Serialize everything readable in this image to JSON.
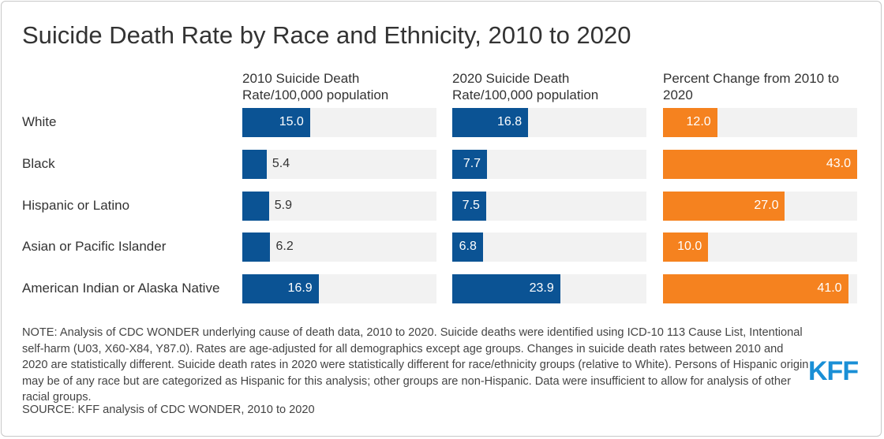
{
  "chart_data": {
    "type": "bar",
    "title": "Suicide Death Rate by Race and Ethnicity, 2010 to 2020",
    "categories": [
      "White",
      "Black",
      "Hispanic or Latino",
      "Asian or Pacific Islander",
      "American Indian or Alaska Native"
    ],
    "xlim": [
      0,
      43
    ],
    "series": [
      {
        "name": "2010 Suicide Death Rate/100,000 population",
        "color": "#0b5394",
        "values": [
          15.0,
          5.4,
          5.9,
          6.2,
          16.9
        ],
        "value_labels": [
          "15.0",
          "5.4",
          "5.9",
          "6.2",
          "16.9"
        ]
      },
      {
        "name": "2020 Suicide Death Rate/100,000 population",
        "color": "#0b5394",
        "values": [
          16.8,
          7.7,
          7.5,
          6.8,
          23.9
        ],
        "value_labels": [
          "16.8",
          "7.7",
          "7.5",
          "6.8",
          "23.9"
        ]
      },
      {
        "name": "Percent Change from 2010 to 2020",
        "color": "#f5821f",
        "values": [
          12.0,
          43.0,
          27.0,
          10.0,
          41.0
        ],
        "value_labels": [
          "12.0",
          "43.0",
          "27.0",
          "10.0",
          "41.0"
        ]
      }
    ],
    "note": "NOTE: Analysis of CDC WONDER underlying cause of death data, 2010 to 2020. Suicide deaths were identified using ICD-10 113 Cause List, Intentional self-harm (U03, X60-X84, Y87.0). Rates are age-adjusted for all demographics except age groups. Changes in suicide death rates between 2010 and 2020 are statistically different. Suicide death rates in 2020 were statistically different for race/ethnicity groups (relative to White). Persons of Hispanic origin may be of any race but are categorized as Hispanic for this analysis; other groups are non-Hispanic. Data were insufficient to allow for analysis of other racial groups.",
    "source": "SOURCE: KFF analysis of CDC WONDER, 2010 to 2020",
    "logo": "KFF"
  }
}
